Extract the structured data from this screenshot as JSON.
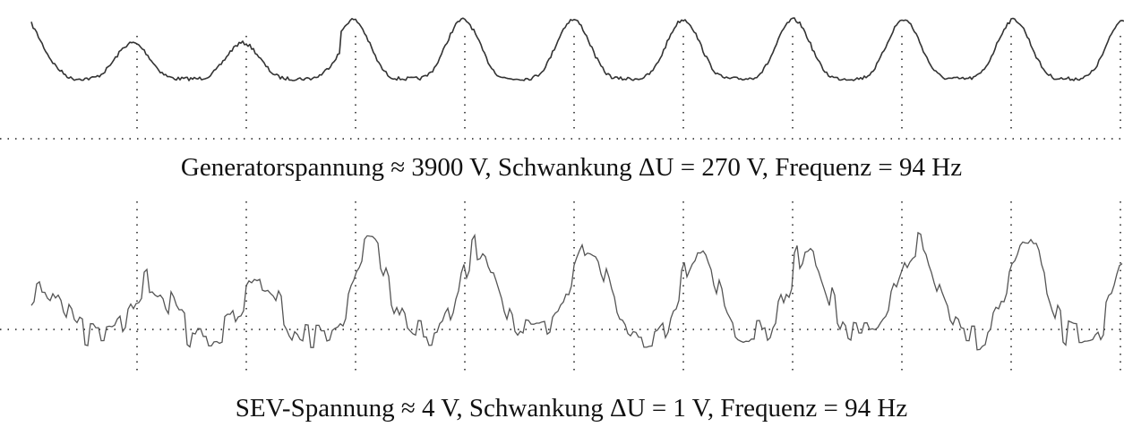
{
  "figure": {
    "captions": [
      "Generatorspannung ≈ 3900 V, Schwankung ΔU = 270 V, Frequenz = 94 Hz",
      "SEV-Spannung ≈ 4 V, Schwankung ΔU = 1 V, Frequenz = 94 Hz"
    ]
  }
}
